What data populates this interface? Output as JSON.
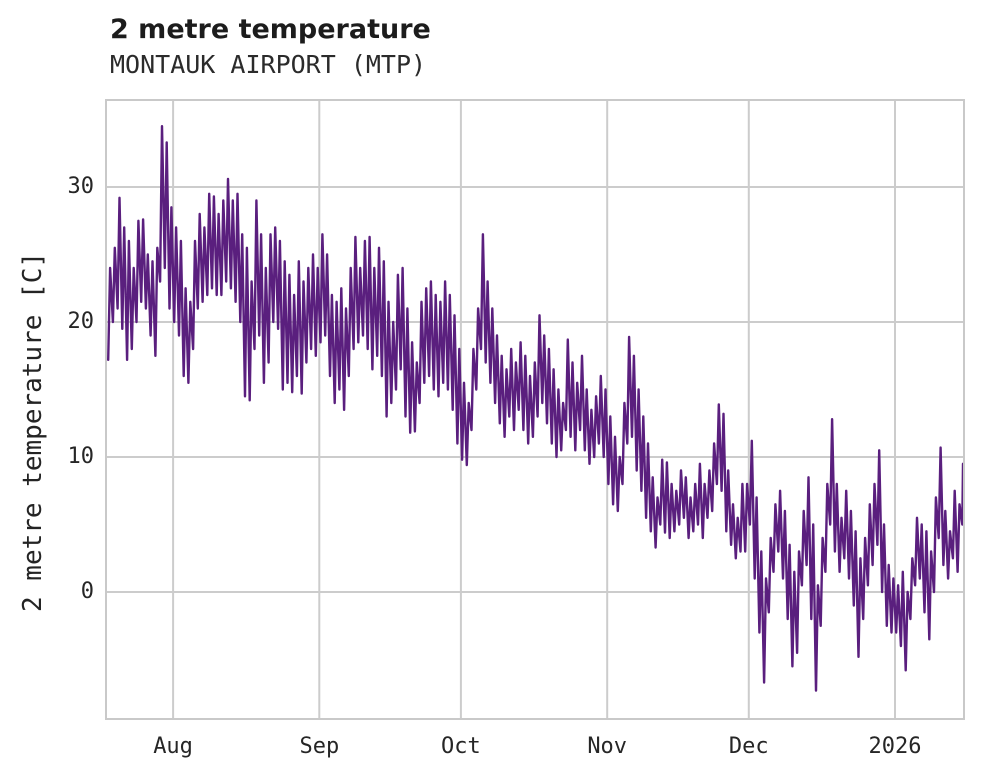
{
  "chart_data": {
    "type": "line",
    "title": "2 metre temperature",
    "subtitle": "MONTAUK AIRPORT (MTP)",
    "ylabel": "2 metre temperature [C]",
    "line_color": "#5A1F7E",
    "grid_color": "#cccccc",
    "grid": true,
    "legend": "none",
    "ylim": [
      -9.33,
      36.37
    ],
    "y_ticks": [
      0,
      10,
      20,
      30
    ],
    "xlim_days": [
      0,
      181.4
    ],
    "x_ticks": [
      {
        "label": "Aug",
        "day": 14
      },
      {
        "label": "Sep",
        "day": 45
      },
      {
        "label": "Oct",
        "day": 75
      },
      {
        "label": "Nov",
        "day": 106
      },
      {
        "label": "Dec",
        "day": 136
      },
      {
        "label": "2026",
        "day": 167
      }
    ],
    "points_per_day": 2,
    "daily": {
      "t_max": [
        24,
        25.5,
        29.2,
        27,
        26,
        24,
        27.5,
        27.6,
        25,
        24.5,
        25.5,
        34.5,
        33.3,
        28.5,
        27,
        26,
        22.5,
        21.5,
        26,
        28,
        27,
        29.5,
        29.3,
        28,
        29,
        30.6,
        29,
        29.5,
        26.5,
        25.5,
        23,
        29,
        26.5,
        24,
        26.5,
        27,
        26,
        24.5,
        23.5,
        22,
        24.5,
        23,
        24,
        25,
        24,
        26.5,
        25,
        22,
        21.5,
        22.5,
        21,
        24,
        26.3,
        24,
        26,
        26.3,
        24,
        25.5,
        24.5,
        21.5,
        20,
        23.5,
        24,
        21,
        18.5,
        17,
        21.5,
        22.5,
        23,
        22,
        21.5,
        23,
        22,
        20.5,
        18,
        15.5,
        14,
        18,
        21,
        26.5,
        23,
        21,
        19,
        17.5,
        16.5,
        18,
        17,
        18.5,
        17.5,
        16,
        17,
        20.5,
        19,
        18,
        16.5,
        15,
        14,
        18.7,
        17,
        15.5,
        17.5,
        15,
        13.5,
        14.5,
        16,
        15,
        13,
        11.5,
        10,
        14,
        18.9,
        17.5,
        15,
        13,
        11,
        8.5,
        7,
        9.8,
        9.6,
        8,
        7.5,
        9,
        8.5,
        7,
        8,
        9.5,
        8,
        9,
        11,
        13.9,
        13.2,
        9,
        6.5,
        5.5,
        8,
        8,
        11.2,
        7,
        3,
        1,
        4,
        6.5,
        7.5,
        6,
        3.5,
        1.5,
        3,
        6,
        8.5,
        5,
        0.5,
        4,
        8,
        12.8,
        8,
        5.5,
        7.5,
        6,
        4.5,
        2.5,
        4,
        6.5,
        8,
        10.5,
        5,
        2,
        1,
        0.5,
        1.5,
        0,
        2.5,
        5.5,
        5,
        4.5,
        3,
        7,
        10.7,
        6,
        4.5,
        7.5,
        6.5,
        9.5
      ],
      "t_min": [
        17.2,
        20,
        21,
        19.5,
        17.2,
        18,
        20,
        21.5,
        21,
        19,
        17.5,
        23,
        24,
        21,
        20,
        19,
        16,
        15.5,
        18,
        21,
        21.5,
        22,
        22.5,
        22,
        22,
        23,
        22.5,
        21.5,
        20,
        14.5,
        14.2,
        18,
        19,
        15.5,
        17,
        20,
        19.5,
        15,
        15.5,
        14.8,
        16,
        14.7,
        17,
        18,
        17.5,
        18.5,
        19,
        16,
        14,
        15,
        13.5,
        16,
        18,
        18.5,
        19,
        18,
        16.5,
        17.5,
        16,
        13,
        14,
        15,
        16.5,
        13,
        11.8,
        11.9,
        14,
        15.5,
        16,
        15,
        14.5,
        15.5,
        15,
        13.5,
        11,
        9.8,
        9.4,
        12,
        15,
        18,
        17,
        15.5,
        14,
        12.5,
        11.5,
        13,
        12,
        13.5,
        12,
        11,
        11.5,
        13,
        14,
        12.5,
        11,
        10,
        10.5,
        12,
        11.5,
        10.5,
        12,
        10.5,
        9.5,
        10,
        11,
        10,
        8,
        6.5,
        6,
        8,
        11,
        11.5,
        9,
        7.5,
        5.5,
        4.5,
        3.3,
        5,
        4.4,
        4,
        4.5,
        5,
        5.5,
        4,
        4.5,
        5,
        4,
        5.5,
        6,
        8,
        7.5,
        4.5,
        3.5,
        2.5,
        3,
        3,
        5,
        1,
        -3,
        -6.7,
        -1.5,
        1.5,
        3,
        1,
        -2,
        -5.5,
        -4.5,
        0.5,
        2,
        -2,
        -7.3,
        -2.5,
        1.5,
        5,
        3,
        1.5,
        2.5,
        1,
        -1,
        -4.8,
        -2,
        0.5,
        2,
        3.5,
        0,
        -2.5,
        -3,
        -3,
        -4,
        -5.8,
        -2,
        0.5,
        1,
        -1.5,
        -3.5,
        0,
        4,
        2,
        1,
        2.5,
        1.5,
        5
      ]
    }
  }
}
